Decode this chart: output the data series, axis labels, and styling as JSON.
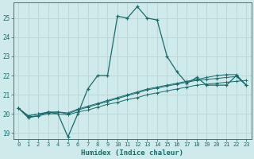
{
  "xlabel": "Humidex (Indice chaleur)",
  "ylabel": "",
  "bg_color": "#ceeaea",
  "grid_color": "#b8d4d4",
  "line_color": "#1a6b6b",
  "xlim_min": -0.5,
  "xlim_max": 23.5,
  "ylim_min": 18.7,
  "ylim_max": 25.8,
  "yticks": [
    19,
    20,
    21,
    22,
    23,
    24,
    25
  ],
  "xticks": [
    0,
    1,
    2,
    3,
    4,
    5,
    6,
    7,
    8,
    9,
    10,
    11,
    12,
    13,
    14,
    15,
    16,
    17,
    18,
    19,
    20,
    21,
    22,
    23
  ],
  "series": [
    [
      20.3,
      19.8,
      19.9,
      20.1,
      20.0,
      18.8,
      20.0,
      21.3,
      22.0,
      22.0,
      25.1,
      25.0,
      25.6,
      25.0,
      24.9,
      23.0,
      22.2,
      21.6,
      21.9,
      21.5,
      21.5,
      21.5,
      22.0,
      21.5
    ],
    [
      20.3,
      19.85,
      19.9,
      20.0,
      20.0,
      19.95,
      20.1,
      20.2,
      20.35,
      20.5,
      20.6,
      20.75,
      20.85,
      21.0,
      21.1,
      21.2,
      21.3,
      21.4,
      21.5,
      21.55,
      21.6,
      21.65,
      21.7,
      21.75
    ],
    [
      20.3,
      19.9,
      20.0,
      20.05,
      20.1,
      20.0,
      20.2,
      20.35,
      20.5,
      20.65,
      20.8,
      20.95,
      21.1,
      21.25,
      21.35,
      21.45,
      21.55,
      21.65,
      21.75,
      21.8,
      21.85,
      21.9,
      21.95,
      21.5
    ],
    [
      20.3,
      19.9,
      20.0,
      20.1,
      20.1,
      20.05,
      20.25,
      20.4,
      20.55,
      20.7,
      20.85,
      21.0,
      21.15,
      21.3,
      21.4,
      21.5,
      21.6,
      21.7,
      21.8,
      21.9,
      22.0,
      22.05,
      22.05,
      21.5
    ]
  ]
}
